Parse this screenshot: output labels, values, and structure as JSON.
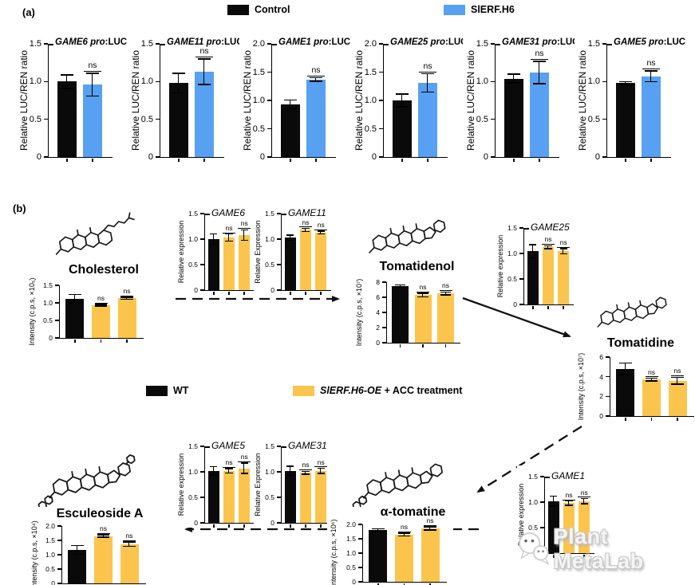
{
  "colors": {
    "control": "#0A0A0A",
    "sierf_h6": "#58A0F2",
    "wt": "#0A0A0A",
    "oe_acc": "#FBC54D"
  },
  "panels": {
    "a": {
      "label": "(a)",
      "legend": [
        {
          "label": "Control",
          "color_key": "control"
        },
        {
          "label": "SlERF.H6",
          "color_key": "sierf_h6"
        }
      ]
    },
    "b": {
      "label": "(b)",
      "legend": [
        {
          "label": "WT",
          "color_key": "wt"
        },
        {
          "label_italic": "SlERF.H6-OE",
          "label_rest": " + ACC treatment",
          "color_key": "oe_acc"
        }
      ]
    }
  },
  "pathway": {
    "metabolites": [
      "Cholesterol",
      "Tomatidenol",
      "Tomatidine",
      "α-tomatine",
      "Esculeoside A"
    ]
  },
  "watermark": {
    "text": "Plant MetaLab"
  },
  "chart_data": [
    {
      "type": "bar",
      "panel": "a",
      "title_italic": "GAME6 pro",
      "title_rest": ":LUC",
      "ylabel": "Relative LUC/REN ratio",
      "ymax": 1.5,
      "ticks": [
        [
          0,
          "0"
        ],
        [
          0.5,
          "0.5"
        ],
        [
          1.0,
          "1.0"
        ],
        [
          1.5,
          "1.5"
        ]
      ],
      "bars": [
        {
          "group": "control",
          "v": 1.0,
          "e": 0.09
        },
        {
          "group": "sierf_h6",
          "v": 0.96,
          "e": 0.15,
          "sig": "ns"
        }
      ]
    },
    {
      "type": "bar",
      "panel": "a",
      "title_italic": "GAME11 pro",
      "title_rest": ":LUC",
      "ylabel": "Relative LUC/REN ratio",
      "ymax": 1.5,
      "ticks": [
        [
          0,
          "0"
        ],
        [
          0.5,
          "0.5"
        ],
        [
          1.0,
          "1.0"
        ],
        [
          1.5,
          "1.5"
        ]
      ],
      "bars": [
        {
          "group": "control",
          "v": 0.98,
          "e": 0.13
        },
        {
          "group": "sierf_h6",
          "v": 1.13,
          "e": 0.17,
          "sig": "ns"
        }
      ]
    },
    {
      "type": "bar",
      "panel": "a",
      "title_italic": "GAME1 pro",
      "title_rest": ":LUC",
      "ylabel": "Relative LUC/REN ratio",
      "ymax": 2.0,
      "ticks": [
        [
          0,
          "0"
        ],
        [
          0.5,
          "0.5"
        ],
        [
          1.0,
          "1.0"
        ],
        [
          1.5,
          "1.5"
        ],
        [
          2.0,
          "2.0"
        ]
      ],
      "bars": [
        {
          "group": "control",
          "v": 0.93,
          "e": 0.08
        },
        {
          "group": "sierf_h6",
          "v": 1.37,
          "e": 0.03,
          "sig": "ns"
        }
      ]
    },
    {
      "type": "bar",
      "panel": "a",
      "title_italic": "GAME25 pro",
      "title_rest": ":LUC",
      "ylabel": "Relative LUC/REN ratio",
      "ymax": 2.0,
      "ticks": [
        [
          0,
          "0"
        ],
        [
          0.5,
          "0.5"
        ],
        [
          1.0,
          "1.0"
        ],
        [
          1.5,
          "1.5"
        ],
        [
          2.0,
          "2.0"
        ]
      ],
      "bars": [
        {
          "group": "control",
          "v": 1.0,
          "e": 0.11
        },
        {
          "group": "sierf_h6",
          "v": 1.31,
          "e": 0.16,
          "sig": "ns"
        }
      ]
    },
    {
      "type": "bar",
      "panel": "a",
      "title_italic": "GAME31 pro",
      "title_rest": ":LUC",
      "ylabel": "Relative LUC/REN ratio",
      "ymax": 1.5,
      "ticks": [
        [
          0,
          "0"
        ],
        [
          0.5,
          "0.5"
        ],
        [
          1.0,
          "1.0"
        ],
        [
          1.5,
          "1.5"
        ]
      ],
      "bars": [
        {
          "group": "control",
          "v": 1.04,
          "e": 0.06
        },
        {
          "group": "sierf_h6",
          "v": 1.12,
          "e": 0.15,
          "sig": "ns"
        }
      ]
    },
    {
      "type": "bar",
      "panel": "a",
      "title_italic": "GAME5 pro",
      "title_rest": ":LUC",
      "ylabel": "Relative LUC/REN ratio",
      "ymax": 1.5,
      "ticks": [
        [
          0,
          "0"
        ],
        [
          0.5,
          "0.5"
        ],
        [
          1.0,
          "1.0"
        ],
        [
          1.5,
          "1.5"
        ]
      ],
      "bars": [
        {
          "group": "control",
          "v": 0.98,
          "e": 0.02
        },
        {
          "group": "sierf_h6",
          "v": 1.07,
          "e": 0.07,
          "sig": "ns"
        }
      ]
    },
    {
      "type": "bar",
      "panel": "b",
      "metabolite": "Cholesterol",
      "ylabel": "Intensity (c.p.s, ×10₅)",
      "ymax": 1.5,
      "ticks": [
        [
          0,
          "0"
        ],
        [
          0.5,
          "0.5"
        ],
        [
          1.0,
          "1.0"
        ],
        [
          1.5,
          "1.5"
        ]
      ],
      "bars": [
        {
          "group": "wt",
          "v": 1.12,
          "e": 0.12
        },
        {
          "group": "oe_acc",
          "v": 0.93,
          "e": 0.02,
          "sig": "ns"
        },
        {
          "group": "oe_acc",
          "v": 1.13,
          "e": 0.03,
          "sig": "ns"
        }
      ]
    },
    {
      "type": "bar",
      "panel": "b",
      "title_italic": "GAME6",
      "title_rest": "",
      "ylabel": "Relative expression",
      "ymax": 1.5,
      "ticks": [
        [
          0,
          "0"
        ],
        [
          0.5,
          "0.5"
        ],
        [
          1.0,
          "1.0"
        ],
        [
          1.5,
          "1.5"
        ]
      ],
      "bars": [
        {
          "group": "wt",
          "v": 1.0,
          "e": 0.1
        },
        {
          "group": "oe_acc",
          "v": 1.03,
          "e": 0.07,
          "sig": "ns"
        },
        {
          "group": "oe_acc",
          "v": 1.08,
          "e": 0.1,
          "sig": "ns"
        }
      ]
    },
    {
      "type": "bar",
      "panel": "b",
      "title_italic": "GAME11",
      "title_rest": "",
      "ylabel": "Relative Expression",
      "ymax": 1.5,
      "ticks": [
        [
          0,
          "0"
        ],
        [
          0.5,
          "0.5"
        ],
        [
          1.0,
          "1.0"
        ],
        [
          1.5,
          "1.5"
        ]
      ],
      "bars": [
        {
          "group": "wt",
          "v": 1.03,
          "e": 0.05
        },
        {
          "group": "oe_acc",
          "v": 1.18,
          "e": 0.03,
          "sig": "ns"
        },
        {
          "group": "oe_acc",
          "v": 1.13,
          "e": 0.03,
          "sig": "ns"
        }
      ]
    },
    {
      "type": "bar",
      "panel": "b",
      "metabolite": "Tomatidenol",
      "ylabel": "Intensity (c.p.s, ×10⁷)",
      "ymax": 8,
      "ticks": [
        [
          0,
          "0"
        ],
        [
          2,
          "2"
        ],
        [
          4,
          "4"
        ],
        [
          6,
          "6"
        ],
        [
          8,
          "8"
        ]
      ],
      "bars": [
        {
          "group": "wt",
          "v": 7.5,
          "e": 0.12
        },
        {
          "group": "oe_acc",
          "v": 6.3,
          "e": 0.25,
          "sig": "ns"
        },
        {
          "group": "oe_acc",
          "v": 6.5,
          "e": 0.2,
          "sig": "ns"
        }
      ]
    },
    {
      "type": "bar",
      "panel": "b",
      "title_italic": "GAME25",
      "title_rest": "",
      "ylabel": "Relative expression",
      "ymax": 1.5,
      "ticks": [
        [
          0,
          "0"
        ],
        [
          0.5,
          "0.5"
        ],
        [
          1.0,
          "1.0"
        ],
        [
          1.5,
          "1.5"
        ]
      ],
      "bars": [
        {
          "group": "wt",
          "v": 1.04,
          "e": 0.13
        },
        {
          "group": "oe_acc",
          "v": 1.12,
          "e": 0.03,
          "sig": "ns"
        },
        {
          "group": "oe_acc",
          "v": 1.04,
          "e": 0.05,
          "sig": "ns"
        }
      ]
    },
    {
      "type": "bar",
      "panel": "b",
      "metabolite": "Tomatidine",
      "ylabel": "Intensity (c.p.s, ×10⁷)",
      "ymax": 6,
      "ticks": [
        [
          0,
          "0"
        ],
        [
          2,
          "2"
        ],
        [
          4,
          "4"
        ],
        [
          6,
          "6"
        ]
      ],
      "bars": [
        {
          "group": "wt",
          "v": 4.8,
          "e": 0.6
        },
        {
          "group": "oe_acc",
          "v": 3.7,
          "e": 0.15,
          "sig": "ns"
        },
        {
          "group": "oe_acc",
          "v": 3.6,
          "e": 0.35,
          "sig": "ns"
        }
      ]
    },
    {
      "type": "bar",
      "panel": "b",
      "title_italic": "GAME5",
      "title_rest": "",
      "ylabel": "Relative expression",
      "ymax": 1.5,
      "ticks": [
        [
          0,
          "0"
        ],
        [
          0.5,
          "0.5"
        ],
        [
          1.0,
          "1.0"
        ],
        [
          1.5,
          "1.5"
        ]
      ],
      "bars": [
        {
          "group": "wt",
          "v": 1.02,
          "e": 0.08
        },
        {
          "group": "oe_acc",
          "v": 1.02,
          "e": 0.04,
          "sig": "ns"
        },
        {
          "group": "oe_acc",
          "v": 1.07,
          "e": 0.1,
          "sig": "ns"
        }
      ]
    },
    {
      "type": "bar",
      "panel": "b",
      "title_italic": "GAME31",
      "title_rest": "",
      "ylabel": "Relative Expression",
      "ymax": 1.5,
      "ticks": [
        [
          0,
          "0"
        ],
        [
          0.5,
          "0.5"
        ],
        [
          1.0,
          "1.0"
        ],
        [
          1.5,
          "1.5"
        ]
      ],
      "bars": [
        {
          "group": "wt",
          "v": 1.02,
          "e": 0.09
        },
        {
          "group": "oe_acc",
          "v": 0.98,
          "e": 0.03,
          "sig": "ns"
        },
        {
          "group": "oe_acc",
          "v": 1.02,
          "e": 0.05,
          "sig": "ns"
        }
      ]
    },
    {
      "type": "bar",
      "panel": "b",
      "metabolite": "Esculeoside A",
      "ylabel": "Intensity (c.p.s, ×10⁴)",
      "ymax": 2.0,
      "ticks": [
        [
          0,
          "0"
        ],
        [
          0.5,
          "0.5"
        ],
        [
          1.0,
          "1.0"
        ],
        [
          1.5,
          "1.5"
        ],
        [
          2.0,
          "2.0"
        ]
      ],
      "bars": [
        {
          "group": "wt",
          "v": 1.17,
          "e": 0.15
        },
        {
          "group": "oe_acc",
          "v": 1.65,
          "e": 0.04,
          "sig": "ns"
        },
        {
          "group": "oe_acc",
          "v": 1.37,
          "e": 0.08,
          "sig": "ns"
        }
      ]
    },
    {
      "type": "bar",
      "panel": "b",
      "metabolite": "α-tomatine",
      "ylabel": "Intensity (c.p.s, ×10⁶)",
      "ymax": 2.0,
      "ticks": [
        [
          0,
          "0"
        ],
        [
          0.5,
          "0.5"
        ],
        [
          1.0,
          "1.0"
        ],
        [
          1.5,
          "1.5"
        ],
        [
          2.0,
          "2.0"
        ]
      ],
      "bars": [
        {
          "group": "wt",
          "v": 1.8,
          "e": 0.05
        },
        {
          "group": "oe_acc",
          "v": 1.65,
          "e": 0.05,
          "sig": "ns"
        },
        {
          "group": "oe_acc",
          "v": 1.86,
          "e": 0.06,
          "sig": "ns"
        }
      ]
    },
    {
      "type": "bar",
      "panel": "b",
      "title_italic": "GAME1",
      "title_rest": "",
      "ylabel": "Relative expression",
      "ymax": 1.5,
      "ticks": [
        [
          0,
          "0"
        ],
        [
          0.5,
          "0.5"
        ],
        [
          1.0,
          "1.0"
        ],
        [
          1.5,
          "1.5"
        ]
      ],
      "bars": [
        {
          "group": "wt",
          "v": 1.02,
          "e": 0.1
        },
        {
          "group": "oe_acc",
          "v": 0.98,
          "e": 0.04,
          "sig": "ns"
        },
        {
          "group": "oe_acc",
          "v": 1.02,
          "e": 0.05,
          "sig": "ns"
        }
      ]
    }
  ]
}
